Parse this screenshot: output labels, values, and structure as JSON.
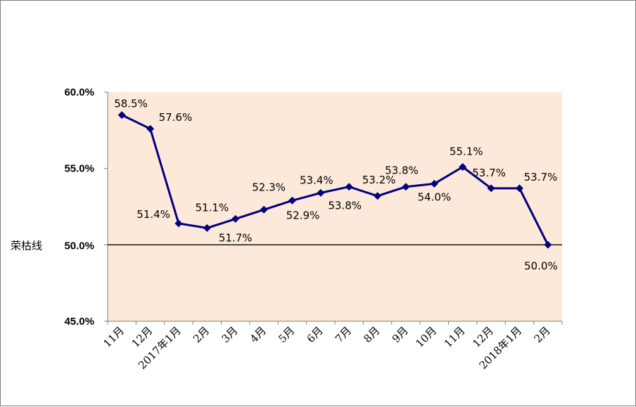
{
  "chart_data": {
    "type": "line",
    "categories": [
      "11月",
      "12月",
      "2017年1月",
      "2月",
      "3月",
      "4月",
      "5月",
      "6月",
      "7月",
      "8月",
      "9月",
      "10月",
      "11月",
      "12月",
      "2018年1月",
      "2月"
    ],
    "series": [
      {
        "values": [
          58.5,
          57.6,
          51.4,
          51.1,
          51.7,
          52.3,
          52.9,
          53.4,
          53.8,
          53.2,
          53.8,
          54.0,
          55.1,
          53.7,
          53.7,
          50.0
        ],
        "labels": [
          "58.5%",
          "57.6%",
          "51.4%",
          "51.1%",
          "51.7%",
          "52.3%",
          "52.9%",
          "53.4%",
          "53.8%",
          "53.2%",
          "53.8%",
          "54.0%",
          "55.1%",
          "53.7%",
          "53.7%",
          "50.0%"
        ],
        "color": "#000080",
        "marker": "diamond"
      }
    ],
    "ylim": [
      45,
      60
    ],
    "yticks": [
      45,
      50,
      55,
      60
    ],
    "ytick_labels": [
      "45.0%",
      "",
      "55.0%",
      "60.0%"
    ],
    "reference_line": {
      "value": 50,
      "label": "荣枯线",
      "value_label": "50.0%",
      "color": "#000000"
    },
    "plot_background": "#fde9d9",
    "grid": false,
    "legend": "none"
  }
}
